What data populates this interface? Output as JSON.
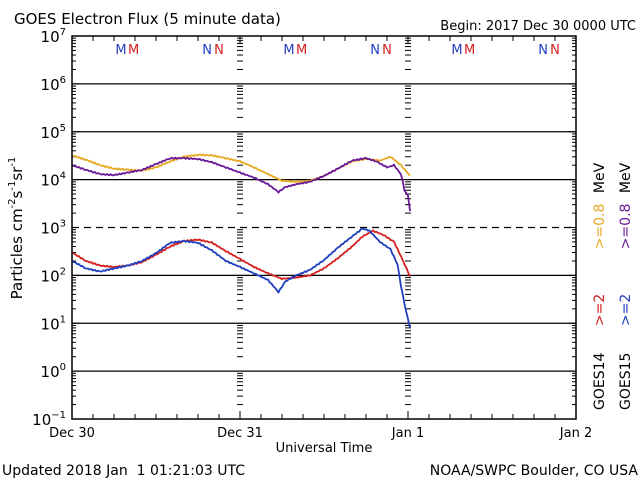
{
  "chart_data": {
    "type": "line",
    "title": "GOES Electron Flux (5 minute data)",
    "begin_label": "Begin: 2017 Dec 30 0000 UTC",
    "xlabel": "Universal Time",
    "ylabel_main": "Particles cm",
    "ylabel_parts": [
      "Particles cm",
      "-2",
      "s",
      "-1",
      "sr",
      "-1"
    ],
    "yscale": "log",
    "ylim_exp": [
      -1,
      7
    ],
    "ytick_exps": [
      "7",
      "6",
      "5",
      "4",
      "3",
      "2",
      "1",
      "0",
      "-1"
    ],
    "x_hours_range": [
      0,
      72
    ],
    "xtick_labels": [
      {
        "hour": 0,
        "label": "Dec 30"
      },
      {
        "hour": 24,
        "label": "Dec 31"
      },
      {
        "hour": 48,
        "label": "Jan 1"
      },
      {
        "hour": 72,
        "label": "Jan 2"
      }
    ],
    "threshold_exp": 3,
    "mn_markers": [
      {
        "hour": 7.0,
        "label": "M",
        "color": "#1f3fbf"
      },
      {
        "hour": 8.8,
        "label": "M",
        "color": "#d42020"
      },
      {
        "hour": 19.3,
        "label": "N",
        "color": "#1f3fbf"
      },
      {
        "hour": 21.0,
        "label": "N",
        "color": "#d42020"
      },
      {
        "hour": 31.0,
        "label": "M",
        "color": "#1f3fbf"
      },
      {
        "hour": 32.8,
        "label": "M",
        "color": "#d42020"
      },
      {
        "hour": 43.3,
        "label": "N",
        "color": "#1f3fbf"
      },
      {
        "hour": 45.0,
        "label": "N",
        "color": "#d42020"
      },
      {
        "hour": 55.0,
        "label": "M",
        "color": "#1f3fbf"
      },
      {
        "hour": 56.8,
        "label": "M",
        "color": "#d42020"
      },
      {
        "hour": 67.3,
        "label": "N",
        "color": "#1f3fbf"
      },
      {
        "hour": 69.0,
        "label": "N",
        "color": "#d42020"
      }
    ],
    "legend": {
      "placement": "right",
      "goes14": {
        "name": "GOES14",
        "e2": ">=2",
        "e08": ">=0.8",
        "unit": "MeV"
      },
      "goes15": {
        "name": "GOES15",
        "e2": ">=2",
        "e08": ">=0.8",
        "unit": "MeV"
      }
    },
    "series": [
      {
        "name": "GOES14 >=0.8 MeV",
        "color": "#e8a820",
        "x_hours": [
          0,
          2,
          4,
          6,
          8,
          10,
          12,
          14,
          16,
          18,
          20,
          22,
          24,
          26,
          28,
          30,
          32,
          34,
          36,
          38,
          40,
          42,
          44,
          45.5,
          47,
          48.3
        ],
        "y": [
          32000,
          26000,
          20000,
          17000,
          16000,
          15500,
          18000,
          24000,
          30000,
          33000,
          32000,
          28000,
          24000,
          18000,
          13000,
          9500,
          9000,
          9500,
          12000,
          17000,
          24000,
          27000,
          25000,
          30000,
          20000,
          12000
        ]
      },
      {
        "name": "GOES15 >=0.8 MeV",
        "color": "#6a1a9a",
        "x_hours": [
          0,
          2,
          4,
          6,
          8,
          10,
          12,
          14,
          16,
          18,
          20,
          22,
          24,
          26,
          28,
          29.5,
          30.5,
          32,
          34,
          36,
          38,
          40,
          42,
          43.5,
          45,
          46,
          47,
          47.5,
          48,
          48.3
        ],
        "y": [
          20000,
          16000,
          13000,
          12500,
          14000,
          16000,
          21000,
          28000,
          28000,
          27000,
          23000,
          18000,
          14000,
          11000,
          8000,
          5500,
          7000,
          8000,
          9000,
          12000,
          17000,
          25000,
          28000,
          24000,
          18000,
          20000,
          13000,
          6000,
          4500,
          2200
        ]
      },
      {
        "name": "GOES14 >=2 MeV",
        "color": "#d42020",
        "x_hours": [
          0,
          2,
          4,
          6,
          8,
          10,
          12,
          14,
          16,
          18,
          20,
          22,
          24,
          26,
          28,
          30,
          32,
          34,
          36,
          38,
          40,
          41.5,
          43,
          44.5,
          46,
          47,
          48.3
        ],
        "y": [
          300,
          200,
          160,
          150,
          160,
          190,
          270,
          400,
          520,
          560,
          480,
          320,
          220,
          150,
          110,
          85,
          90,
          100,
          140,
          230,
          400,
          650,
          850,
          700,
          500,
          250,
          95
        ]
      },
      {
        "name": "GOES15 >=2 MeV",
        "color": "#1f3fbf",
        "x_hours": [
          0,
          2,
          4,
          6,
          8,
          10,
          12,
          14,
          16,
          18,
          20,
          22,
          24,
          26,
          28,
          29.5,
          30.5,
          32,
          34,
          36,
          38,
          40,
          41.5,
          42.5,
          44,
          45.5,
          46.5,
          47,
          47.5,
          48,
          48.3
        ],
        "y": [
          200,
          140,
          120,
          140,
          160,
          200,
          290,
          480,
          520,
          480,
          330,
          200,
          150,
          110,
          80,
          45,
          75,
          100,
          130,
          210,
          380,
          650,
          950,
          850,
          500,
          350,
          170,
          60,
          25,
          12,
          8
        ]
      }
    ]
  },
  "footer": {
    "updated": "Updated 2018 Jan  1 01:21:03 UTC",
    "credit": "NOAA/SWPC Boulder, CO USA"
  }
}
